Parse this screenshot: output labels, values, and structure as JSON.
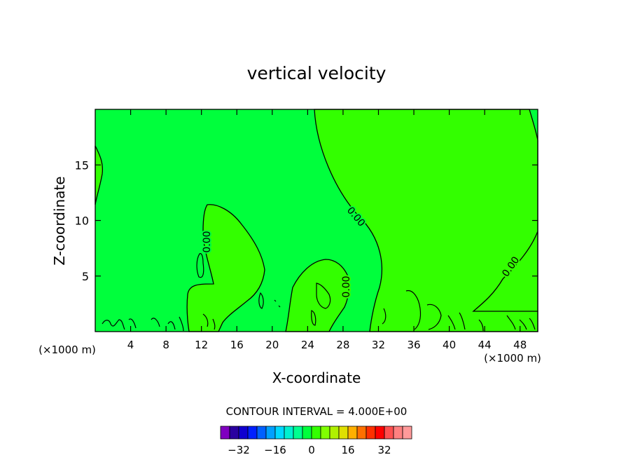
{
  "chart_data": {
    "type": "contour",
    "title": "vertical velocity",
    "xlabel": "X-coordinate",
    "ylabel": "Z-coordinate",
    "x_unit_left": "(×1000 m)",
    "x_unit_right": "(×1000 m)",
    "xlim": [
      0,
      50
    ],
    "ylim": [
      0,
      20
    ],
    "x_ticks": [
      4,
      8,
      12,
      16,
      20,
      24,
      28,
      32,
      36,
      40,
      44,
      48
    ],
    "y_ticks": [
      5,
      10,
      15
    ],
    "contour_interval_label": "CONTOUR INTERVAL = 4.000E+00",
    "contour_labels": [
      {
        "text": "0.00",
        "x": 12.6,
        "z": 9.1
      },
      {
        "text": "0.00",
        "x": 29.0,
        "z": 10.1
      },
      {
        "text": "0.00",
        "x": 28.4,
        "z": 3.9
      },
      {
        "text": "0.00",
        "x": 47.0,
        "z": 6.0
      }
    ],
    "regions": {
      "background_fill": "#00ff3c",
      "positive_fill": "#33ff00"
    },
    "colorbar": {
      "colors": [
        "#8000c0",
        "#2a00a0",
        "#1000d0",
        "#0020ff",
        "#0060ff",
        "#00a0ff",
        "#00d8ff",
        "#00f0d0",
        "#00ff90",
        "#00ff3c",
        "#33ff00",
        "#80ff00",
        "#b0f000",
        "#e0e000",
        "#ffb000",
        "#ff7000",
        "#ff3000",
        "#ff0000",
        "#ff5050",
        "#ff8080",
        "#ff9a9a"
      ],
      "tick_labels": [
        "−32",
        "−16",
        "0",
        "16",
        "32"
      ],
      "tick_values": [
        -32,
        -16,
        0,
        16,
        32
      ],
      "min": -40,
      "max": 44
    }
  }
}
